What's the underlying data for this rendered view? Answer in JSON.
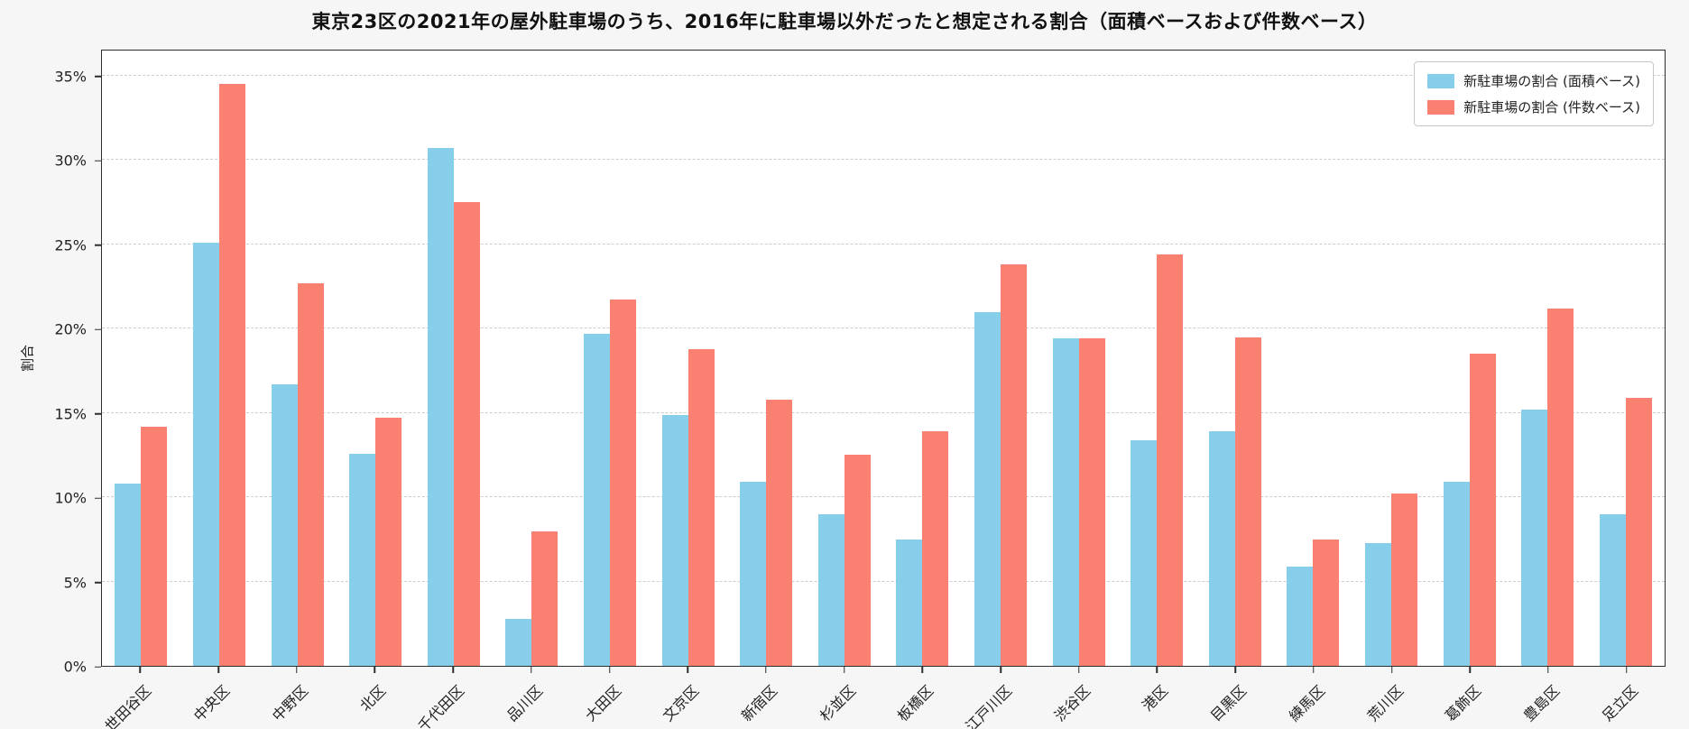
{
  "chart_data": {
    "type": "bar",
    "title": "東京23区の2021年の屋外駐車場のうち、2016年に駐車場以外だったと想定される割合（面積ベースおよび件数ベース）",
    "xlabel": "",
    "ylabel": "割合",
    "ylim": [
      0,
      36.6
    ],
    "yticks": [
      0,
      5,
      10,
      15,
      20,
      25,
      30,
      35
    ],
    "ytick_suffix": "%",
    "grid": true,
    "legend_position": "top-right",
    "categories": [
      "世田谷区",
      "中央区",
      "中野区",
      "北区",
      "千代田区",
      "品川区",
      "大田区",
      "文京区",
      "新宿区",
      "杉並区",
      "板橋区",
      "江戸川区",
      "渋谷区",
      "港区",
      "目黒区",
      "練馬区",
      "荒川区",
      "葛飾区",
      "豊島区",
      "足立区"
    ],
    "series": [
      {
        "name": "新駐車場の割合 (面積ベース)",
        "color": "#87CEEB",
        "values": [
          10.8,
          25.1,
          16.7,
          12.6,
          30.7,
          2.8,
          19.7,
          14.9,
          10.9,
          9.0,
          7.5,
          21.0,
          19.4,
          13.4,
          13.9,
          5.9,
          7.3,
          10.9,
          15.2,
          9.0
        ]
      },
      {
        "name": "新駐車場の割合 (件数ベース)",
        "color": "#FA8072",
        "values": [
          14.2,
          34.5,
          22.7,
          14.7,
          27.5,
          8.0,
          21.7,
          18.8,
          15.8,
          12.5,
          13.9,
          23.8,
          19.4,
          24.4,
          19.5,
          7.5,
          10.2,
          18.5,
          21.2,
          15.9
        ]
      }
    ]
  },
  "colors": {
    "background": "#f6f6f7",
    "plot_background": "#ffffff",
    "gridline": "#cdcdcd",
    "axis": "#2e2e2e",
    "text": "#1a1a1a"
  }
}
